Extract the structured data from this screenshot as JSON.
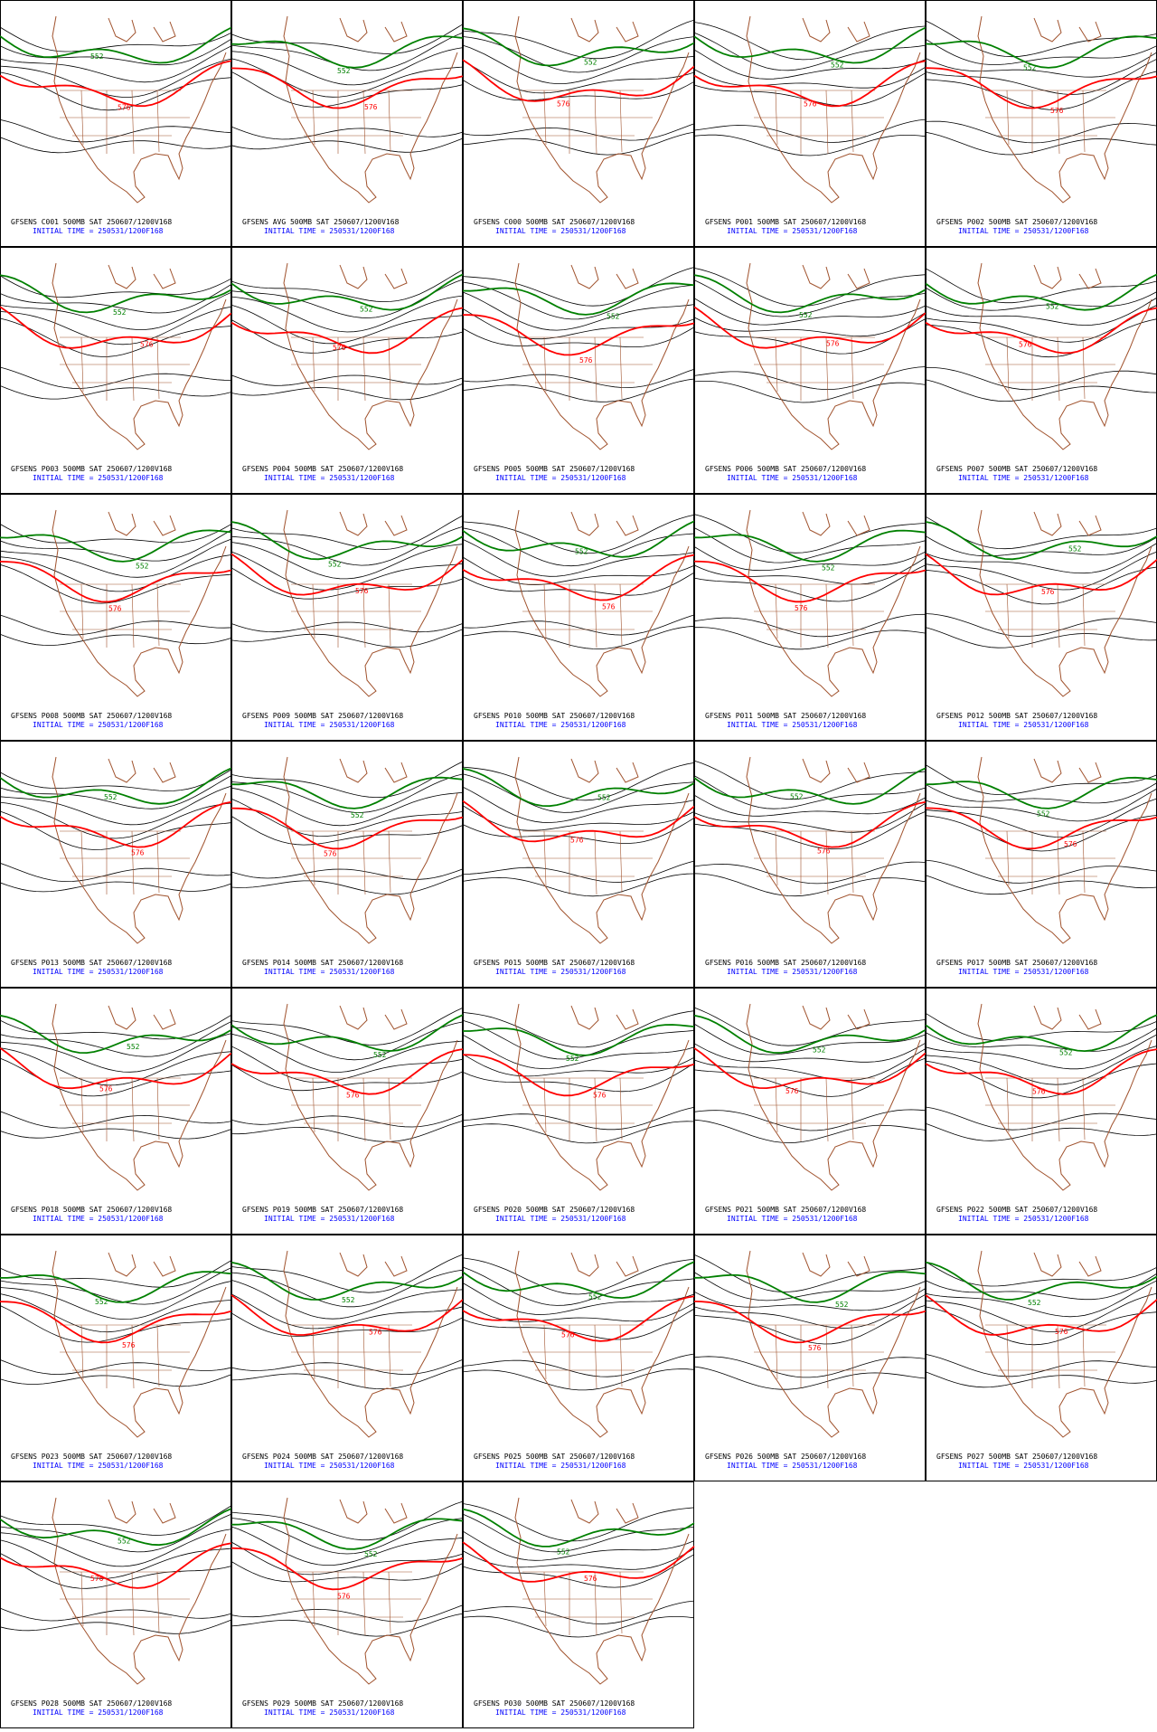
{
  "contour_levels": [
    {
      "value": 552,
      "color": "#008000"
    },
    {
      "value": 576,
      "color": "#ff0000"
    }
  ],
  "panels": [
    {
      "title": "GFSENS C001 500MB SAT 250607/1200V168",
      "initial_time": "INITIAL TIME = 250531/1200F168"
    },
    {
      "title": "GFSENS AVG 500MB SAT 250607/1200V168",
      "initial_time": "INITIAL TIME = 250531/1200F168"
    },
    {
      "title": "GFSENS C000 500MB SAT 250607/1200V168",
      "initial_time": "INITIAL TIME = 250531/1200F168"
    },
    {
      "title": "GFSENS P001 500MB SAT 250607/1200V168",
      "initial_time": "INITIAL TIME = 250531/1200F168"
    },
    {
      "title": "GFSENS P002 500MB SAT 250607/1200V168",
      "initial_time": "INITIAL TIME = 250531/1200F168"
    },
    {
      "title": "GFSENS P003 500MB SAT 250607/1200V168",
      "initial_time": "INITIAL TIME = 250531/1200F168"
    },
    {
      "title": "GFSENS P004 500MB SAT 250607/1200V168",
      "initial_time": "INITIAL TIME = 250531/1200F168"
    },
    {
      "title": "GFSENS P005 500MB SAT 250607/1200V168",
      "initial_time": "INITIAL TIME = 250531/1200F168"
    },
    {
      "title": "GFSENS P006 500MB SAT 250607/1200V168",
      "initial_time": "INITIAL TIME = 250531/1200F168"
    },
    {
      "title": "GFSENS P007 500MB SAT 250607/1200V168",
      "initial_time": "INITIAL TIME = 250531/1200F168"
    },
    {
      "title": "GFSENS P008 500MB SAT 250607/1200V168",
      "initial_time": "INITIAL TIME = 250531/1200F168"
    },
    {
      "title": "GFSENS P009 500MB SAT 250607/1200V168",
      "initial_time": "INITIAL TIME = 250531/1200F168"
    },
    {
      "title": "GFSENS P010 500MB SAT 250607/1200V168",
      "initial_time": "INITIAL TIME = 250531/1200F168"
    },
    {
      "title": "GFSENS P011 500MB SAT 250607/1200V168",
      "initial_time": "INITIAL TIME = 250531/1200F168"
    },
    {
      "title": "GFSENS P012 500MB SAT 250607/1200V168",
      "initial_time": "INITIAL TIME = 250531/1200F168"
    },
    {
      "title": "GFSENS P013 500MB SAT 250607/1200V168",
      "initial_time": "INITIAL TIME = 250531/1200F168"
    },
    {
      "title": "GFSENS P014 500MB SAT 250607/1200V168",
      "initial_time": "INITIAL TIME = 250531/1200F168"
    },
    {
      "title": "GFSENS P015 500MB SAT 250607/1200V168",
      "initial_time": "INITIAL TIME = 250531/1200F168"
    },
    {
      "title": "GFSENS P016 500MB SAT 250607/1200V168",
      "initial_time": "INITIAL TIME = 250531/1200F168"
    },
    {
      "title": "GFSENS P017 500MB SAT 250607/1200V168",
      "initial_time": "INITIAL TIME = 250531/1200F168"
    },
    {
      "title": "GFSENS P018 500MB SAT 250607/1200V168",
      "initial_time": "INITIAL TIME = 250531/1200F168"
    },
    {
      "title": "GFSENS P019 500MB SAT 250607/1200V168",
      "initial_time": "INITIAL TIME = 250531/1200F168"
    },
    {
      "title": "GFSENS P020 500MB SAT 250607/1200V168",
      "initial_time": "INITIAL TIME = 250531/1200F168"
    },
    {
      "title": "GFSENS P021 500MB SAT 250607/1200V168",
      "initial_time": "INITIAL TIME = 250531/1200F168"
    },
    {
      "title": "GFSENS P022 500MB SAT 250607/1200V168",
      "initial_time": "INITIAL TIME = 250531/1200F168"
    },
    {
      "title": "GFSENS P023 500MB SAT 250607/1200V168",
      "initial_time": "INITIAL TIME = 250531/1200F168"
    },
    {
      "title": "GFSENS P024 500MB SAT 250607/1200V168",
      "initial_time": "INITIAL TIME = 250531/1200F168"
    },
    {
      "title": "GFSENS P025 500MB SAT 250607/1200V168",
      "initial_time": "INITIAL TIME = 250531/1200F168"
    },
    {
      "title": "GFSENS P026 500MB SAT 250607/1200V168",
      "initial_time": "INITIAL TIME = 250531/1200F168"
    },
    {
      "title": "GFSENS P027 500MB SAT 250607/1200V168",
      "initial_time": "INITIAL TIME = 250531/1200F168"
    },
    {
      "title": "GFSENS P028 500MB SAT 250607/1200V168",
      "initial_time": "INITIAL TIME = 250531/1200F168"
    },
    {
      "title": "GFSENS P029 500MB SAT 250607/1200V168",
      "initial_time": "INITIAL TIME = 250531/1200F168"
    },
    {
      "title": "GFSENS P030 500MB SAT 250607/1200V168",
      "initial_time": "INITIAL TIME = 250531/1200F168"
    }
  ]
}
